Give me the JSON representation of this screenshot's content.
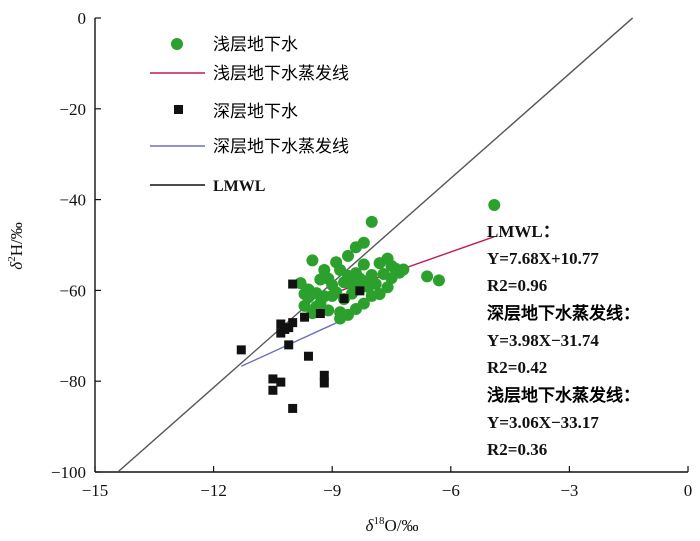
{
  "chart_data": {
    "type": "scatter",
    "title": "",
    "xlabel": "δ18O/‰",
    "ylabel": "δ2H/‰",
    "xlim": [
      -15,
      0
    ],
    "ylim": [
      -100,
      0
    ],
    "xticks": [
      -15,
      -12,
      -9,
      -6,
      -3,
      0
    ],
    "yticks": [
      0,
      -20,
      -40,
      -60,
      -80,
      -100
    ],
    "xtick_labels": [
      "−15",
      "−12",
      "−9",
      "−6",
      "−3",
      "0"
    ],
    "ytick_labels": [
      "0",
      "−20",
      "−40",
      "−60",
      "−80",
      "−100"
    ],
    "legend": {
      "shallow_points": "浅层地下水",
      "shallow_line": "浅层地下水蒸发线",
      "deep_points": "深层地下水",
      "deep_line": "深层地下水蒸发线",
      "lmwl": "LMWL"
    },
    "series": [
      {
        "name": "浅层地下水",
        "kind": "points",
        "marker": "circle",
        "color": "#2ca02c",
        "points": [
          [
            -4.9,
            -41.2
          ],
          [
            -8.0,
            -44.9
          ],
          [
            -9.5,
            -53.4
          ],
          [
            -8.2,
            -49.5
          ],
          [
            -8.4,
            -50.5
          ],
          [
            -8.6,
            -52.4
          ],
          [
            -8.9,
            -53.8
          ],
          [
            -9.2,
            -55.5
          ],
          [
            -9.3,
            -57.6
          ],
          [
            -9.1,
            -57.4
          ],
          [
            -8.8,
            -55.5
          ],
          [
            -8.6,
            -56.8
          ],
          [
            -8.4,
            -56.2
          ],
          [
            -8.2,
            -54.3
          ],
          [
            -8.0,
            -56.6
          ],
          [
            -7.8,
            -54.0
          ],
          [
            -7.6,
            -53.0
          ],
          [
            -7.5,
            -54.6
          ],
          [
            -7.4,
            -55.2
          ],
          [
            -7.3,
            -56.1
          ],
          [
            -7.7,
            -56.4
          ],
          [
            -7.9,
            -58.6
          ],
          [
            -8.1,
            -59.2
          ],
          [
            -8.3,
            -59.6
          ],
          [
            -8.5,
            -60.7
          ],
          [
            -8.7,
            -61.9
          ],
          [
            -9.0,
            -61.2
          ],
          [
            -9.3,
            -62.8
          ],
          [
            -9.6,
            -61.5
          ],
          [
            -9.7,
            -63.4
          ],
          [
            -9.4,
            -63.6
          ],
          [
            -9.1,
            -64.4
          ],
          [
            -8.8,
            -64.8
          ],
          [
            -8.6,
            -65.4
          ],
          [
            -8.4,
            -64.1
          ],
          [
            -8.2,
            -62.9
          ],
          [
            -8.0,
            -61.2
          ],
          [
            -7.8,
            -60.8
          ],
          [
            -7.6,
            -59.3
          ],
          [
            -8.8,
            -66.2
          ],
          [
            -9.5,
            -65.0
          ],
          [
            -9.2,
            -61.3
          ],
          [
            -8.5,
            -58.6
          ],
          [
            -8.7,
            -58.2
          ],
          [
            -9.0,
            -58.8
          ],
          [
            -9.4,
            -60.6
          ],
          [
            -9.6,
            -59.8
          ],
          [
            -9.8,
            -58.4
          ],
          [
            -6.6,
            -56.9
          ],
          [
            -6.3,
            -57.8
          ],
          [
            -7.2,
            -55.4
          ],
          [
            -7.5,
            -57.3
          ],
          [
            -8.9,
            -60.4
          ],
          [
            -8.1,
            -57.9
          ],
          [
            -8.3,
            -57.4
          ],
          [
            -9.7,
            -60.8
          ]
        ]
      },
      {
        "name": "深层地下水",
        "kind": "points",
        "marker": "square",
        "color": "#111111",
        "points": [
          [
            -11.3,
            -73.1
          ],
          [
            -10.5,
            -79.5
          ],
          [
            -10.5,
            -82.0
          ],
          [
            -10.3,
            -80.2
          ],
          [
            -10.0,
            -86.0
          ],
          [
            -9.6,
            -74.5
          ],
          [
            -9.2,
            -78.7
          ],
          [
            -9.2,
            -80.4
          ],
          [
            -10.0,
            -58.6
          ],
          [
            -10.3,
            -67.4
          ],
          [
            -10.2,
            -68.6
          ],
          [
            -10.3,
            -69.4
          ],
          [
            -10.1,
            -68.2
          ],
          [
            -10.0,
            -67.1
          ],
          [
            -10.1,
            -72.0
          ],
          [
            -9.7,
            -65.9
          ],
          [
            -9.3,
            -65.1
          ],
          [
            -8.7,
            -61.8
          ],
          [
            -8.3,
            -60.1
          ]
        ]
      },
      {
        "name": "LMWL",
        "kind": "line",
        "color": "#555555",
        "equation": "Y=7.68X+10.77",
        "slope": 7.68,
        "intercept": 10.77,
        "x_range": [
          -14.42,
          -1.4
        ]
      },
      {
        "name": "浅层地下水蒸发线",
        "kind": "line",
        "color": "#c2185b",
        "equation": "Y=3.06X−33.17",
        "slope": 3.06,
        "intercept": -33.17,
        "x_range": [
          -9.3,
          -4.9
        ]
      },
      {
        "name": "深层地下水蒸发线",
        "kind": "line",
        "color": "#6f6fbf",
        "equation": "Y=3.98X−31.74",
        "slope": 3.98,
        "intercept": -31.74,
        "x_range": [
          -11.3,
          -8.7
        ]
      }
    ],
    "annotations": {
      "lmwl_title": "LMWL：",
      "lmwl_eq": "Y=7.68X+10.77",
      "lmwl_r2": "R2=0.96",
      "deep_title": "深层地下水蒸发线：",
      "deep_eq": "Y=3.98X−31.74",
      "deep_r2": "R2=0.42",
      "shallow_title": "浅层地下水蒸发线：",
      "shallow_eq": "Y=3.06X−33.17",
      "shallow_r2": "R2=0.36"
    }
  }
}
